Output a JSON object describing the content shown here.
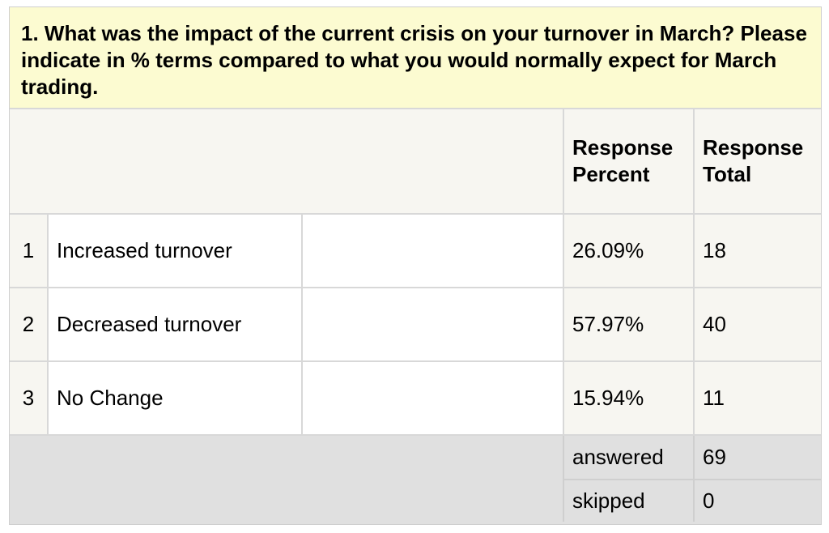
{
  "question": {
    "text": "1. What was the impact of the current crisis on your turnover in March? Please indicate in % terms compared to what you would normally expect for March trading."
  },
  "columns": {
    "response_percent": "Response Percent",
    "response_total": "Response Total"
  },
  "rows": [
    {
      "num": "1",
      "label": "Increased turnover",
      "percent": "26.09%",
      "total": "18"
    },
    {
      "num": "2",
      "label": "Decreased turnover",
      "percent": "57.97%",
      "total": "40"
    },
    {
      "num": "3",
      "label": "No Change",
      "percent": "15.94%",
      "total": "11"
    }
  ],
  "summary": {
    "answered_label": "answered",
    "answered_value": "69",
    "skipped_label": "skipped",
    "skipped_value": "0"
  },
  "colors": {
    "question_bg": "#fcfbd1",
    "header_bg": "#f7f6f1",
    "footer_bg": "#e0e0e0",
    "border": "#d8d8d8"
  }
}
